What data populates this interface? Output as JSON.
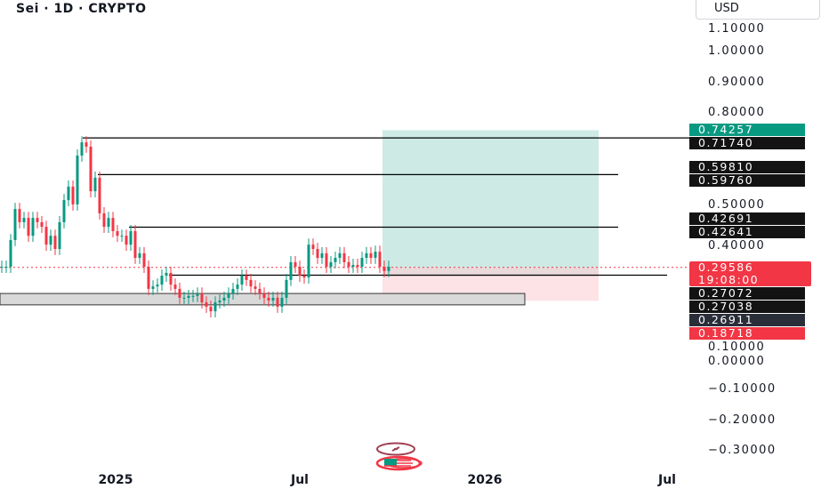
{
  "header": {
    "title": "Sei · 1D · CRYPTO",
    "currency": "USD"
  },
  "colors": {
    "up": "#089981",
    "down": "#f23645",
    "target_zone": "#cdeae4",
    "stop_zone": "#fddbe0",
    "support_box": "#d9d9d9",
    "line": "#000000"
  },
  "chart_data": {
    "type": "candlestick",
    "ylim": [
      -0.3,
      1.1
    ],
    "y_ticks": [
      "1.10000",
      "1.00000",
      "0.90000",
      "0.80000",
      "0.50000",
      "0.40000",
      "0.10000",
      "0.00000",
      "−0.10000",
      "−0.20000",
      "−0.30000"
    ],
    "y_tick_values": [
      1.1,
      1.0,
      0.9,
      0.8,
      0.5,
      0.4,
      0.1,
      0.0,
      -0.1,
      -0.2,
      -0.3
    ],
    "x_ticks": [
      "2025",
      "Jul",
      "2026",
      "Jul"
    ],
    "closes": [
      0.298,
      0.298,
      0.385,
      0.486,
      0.443,
      0.457,
      0.399,
      0.457,
      0.443,
      0.428,
      0.37,
      0.399,
      0.356,
      0.443,
      0.515,
      0.559,
      0.501,
      0.66,
      0.703,
      0.689,
      0.544,
      0.588,
      0.472,
      0.428,
      0.457,
      0.414,
      0.399,
      0.399,
      0.37,
      0.414,
      0.327,
      0.342,
      0.298,
      0.226,
      0.234,
      0.24,
      0.269,
      0.278,
      0.24,
      0.226,
      0.197,
      0.197,
      0.203,
      0.203,
      0.211,
      0.182,
      0.168,
      0.153,
      0.182,
      0.188,
      0.197,
      0.211,
      0.226,
      0.24,
      0.269,
      0.255,
      0.234,
      0.226,
      0.211,
      0.197,
      0.188,
      0.197,
      0.168,
      0.197,
      0.255,
      0.313,
      0.298,
      0.269,
      0.263,
      0.37,
      0.356,
      0.327,
      0.342,
      0.298,
      0.313,
      0.327,
      0.342,
      0.313,
      0.298,
      0.304,
      0.298,
      0.327,
      0.342,
      0.327,
      0.347,
      0.298,
      0.284,
      0.298
    ],
    "horizontal_lines": [
      0.7174,
      0.5981,
      0.42691,
      0.27072
    ],
    "support_zone": [
      0.174,
      0.211
    ],
    "position": {
      "target": 0.74257,
      "entry": 0.29586,
      "stop": 0.18718
    },
    "current_price": 0.29586
  },
  "price_labels": [
    {
      "value": "0.74257",
      "price": 0.74257,
      "color": "#089981"
    },
    {
      "value": "0.71740",
      "price": 0.7174,
      "color": "#131313"
    },
    {
      "value": "0.59810",
      "price": 0.622,
      "color": "#131313"
    },
    {
      "value": "0.59760",
      "price": 0.5981,
      "color": "#131313"
    },
    {
      "value": "0.42691",
      "price": 0.4559,
      "color": "#131313"
    },
    {
      "value": "0.42641",
      "price": 0.4269,
      "color": "#131313"
    },
    {
      "value": "0.27072",
      "price": 0.2352,
      "color": "#131313"
    },
    {
      "value": "0.27038",
      "price": 0.2062,
      "color": "#131313"
    },
    {
      "value": "0.26911",
      "price": 0.1744,
      "color": "#2a2e39"
    },
    {
      "value": "0.18718",
      "price": 0.1398,
      "color": "#f23645"
    }
  ],
  "current_label": {
    "price": "0.29586",
    "countdown": "19:08:00"
  }
}
